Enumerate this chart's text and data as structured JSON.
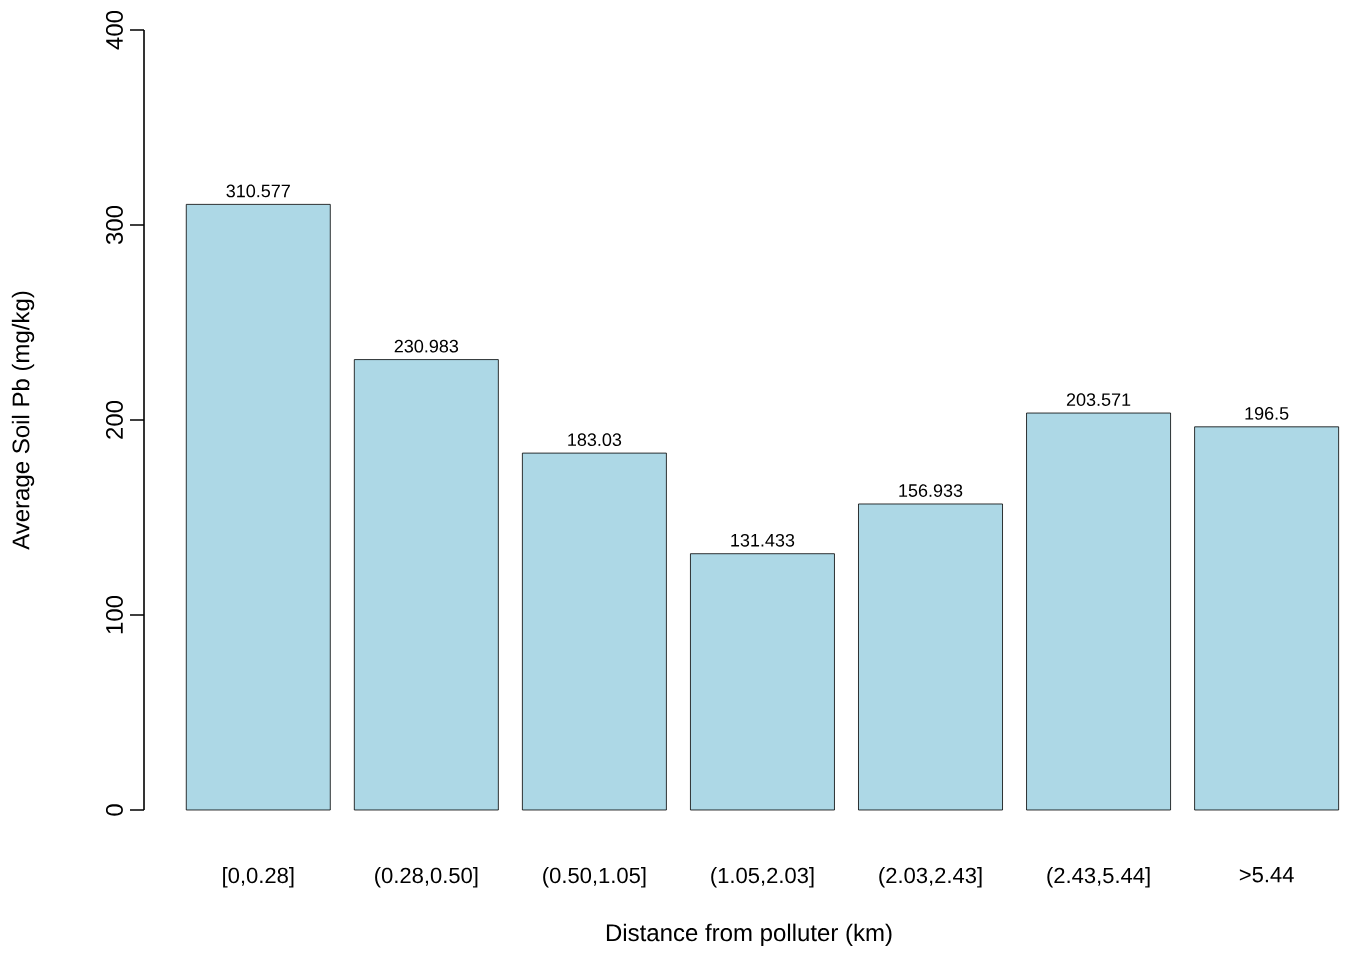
{
  "chart_data": {
    "type": "bar",
    "xlabel": "Distance from polluter (km)",
    "ylabel": "Average Soil Pb (mg/kg)",
    "categories": [
      "[0,0.28]",
      "(0.28,0.50]",
      "(0.50,1.05]",
      "(1.05,2.03]",
      "(2.03,2.43]",
      "(2.43,5.44]",
      ">5.44"
    ],
    "values": [
      310.577,
      230.983,
      183.03,
      131.433,
      156.933,
      203.571,
      196.5
    ],
    "color": "#add8e6",
    "ylim": [
      0,
      400
    ],
    "yticks": [
      0,
      100,
      200,
      300,
      400
    ],
    "data_labels": true
  }
}
